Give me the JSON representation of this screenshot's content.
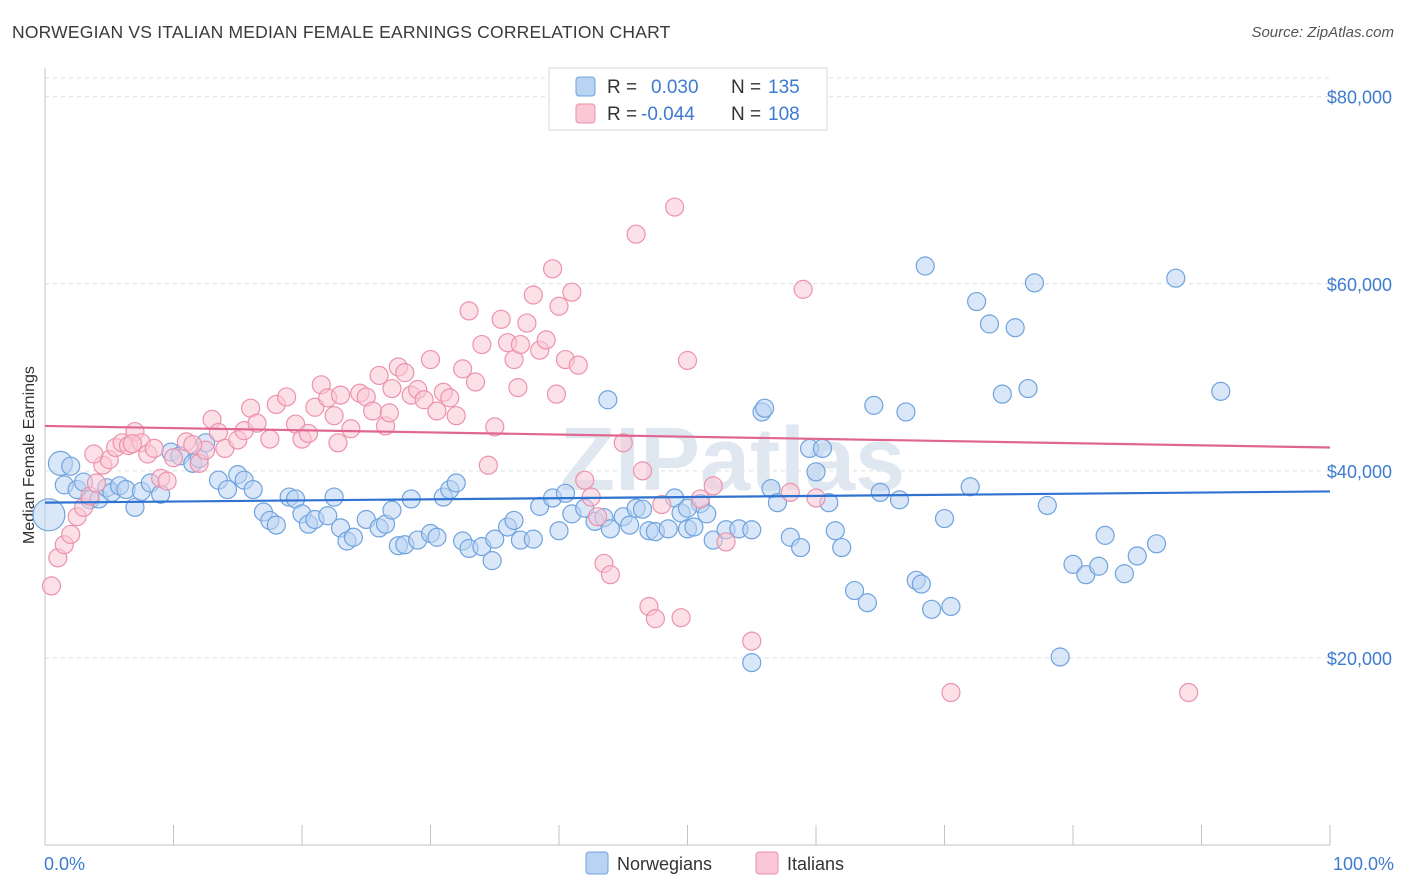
{
  "title": "NORWEGIAN VS ITALIAN MEDIAN FEMALE EARNINGS CORRELATION CHART",
  "source": "Source: ZipAtlas.com",
  "watermark": "ZIPatlas",
  "colors": {
    "norwegians_fill": "#b9d3f2",
    "norwegians_stroke": "#6fa3de",
    "norwegians_line": "#2f72cf",
    "italians_fill": "#f9c7d5",
    "italians_stroke": "#ec92ad",
    "italians_line": "#e06690",
    "axis_text": "#3d7bd0",
    "grid": "#d9dde3"
  },
  "legend": {
    "rows": [
      {
        "r_label": "R =",
        "r_value": "0.030",
        "n_label": "N =",
        "n_value": "135"
      },
      {
        "r_label": "R =",
        "r_value": "-0.044",
        "n_label": "N =",
        "n_value": "108"
      }
    ]
  },
  "bottom_legend": [
    "Norwegians",
    "Italians"
  ],
  "chart_data": {
    "type": "scatter",
    "title": "NORWEGIAN VS ITALIAN MEDIAN FEMALE EARNINGS CORRELATION CHART",
    "xlabel": "",
    "ylabel": "Median Female Earnings",
    "xlim": [
      0,
      100
    ],
    "ylim": [
      0,
      82000
    ],
    "x_tick_labels": [
      "0.0%",
      "100.0%"
    ],
    "y_ticks": [
      20000,
      40000,
      60000,
      80000
    ],
    "y_tick_labels": [
      "$20,000",
      "$40,000",
      "$60,000",
      "$80,000"
    ],
    "grid": true,
    "legend_position": "top-center",
    "series": [
      {
        "name": "Norwegians",
        "r": 0.03,
        "n": 135,
        "trend": [
          [
            0,
            36600
          ],
          [
            100,
            37800
          ]
        ],
        "points": [
          [
            0.3,
            35300
          ],
          [
            1.2,
            40800
          ],
          [
            2.0,
            40500
          ],
          [
            1.5,
            38500
          ],
          [
            2.5,
            38000
          ],
          [
            3.0,
            38800
          ],
          [
            3.5,
            36900
          ],
          [
            4.2,
            37000
          ],
          [
            4.8,
            38200
          ],
          [
            5.2,
            37700
          ],
          [
            5.8,
            38400
          ],
          [
            6.3,
            38000
          ],
          [
            7.0,
            36100
          ],
          [
            7.5,
            37800
          ],
          [
            8.2,
            38700
          ],
          [
            9.0,
            37500
          ],
          [
            9.8,
            42000
          ],
          [
            10.5,
            41600
          ],
          [
            11.5,
            40800
          ],
          [
            12.0,
            41300
          ],
          [
            12.5,
            43000
          ],
          [
            13.5,
            39000
          ],
          [
            14.2,
            38000
          ],
          [
            15.0,
            39600
          ],
          [
            15.5,
            39000
          ],
          [
            16.2,
            38000
          ],
          [
            17.0,
            35600
          ],
          [
            17.5,
            34700
          ],
          [
            18.0,
            34200
          ],
          [
            19.0,
            37200
          ],
          [
            19.5,
            37000
          ],
          [
            20.0,
            35400
          ],
          [
            20.5,
            34300
          ],
          [
            21.0,
            34800
          ],
          [
            22.0,
            35200
          ],
          [
            22.5,
            37200
          ],
          [
            23.0,
            33900
          ],
          [
            23.5,
            32500
          ],
          [
            24.0,
            32900
          ],
          [
            25.0,
            34800
          ],
          [
            26.0,
            33900
          ],
          [
            26.5,
            34300
          ],
          [
            27.0,
            35800
          ],
          [
            27.5,
            32000
          ],
          [
            28.0,
            32100
          ],
          [
            28.5,
            37000
          ],
          [
            29.0,
            32600
          ],
          [
            30.0,
            33300
          ],
          [
            30.5,
            32900
          ],
          [
            31.0,
            37200
          ],
          [
            31.5,
            38000
          ],
          [
            32.0,
            38700
          ],
          [
            32.5,
            32500
          ],
          [
            33.0,
            31700
          ],
          [
            34.0,
            31900
          ],
          [
            34.8,
            30400
          ],
          [
            35.0,
            32700
          ],
          [
            36.0,
            34000
          ],
          [
            36.5,
            34700
          ],
          [
            37.0,
            32600
          ],
          [
            38.0,
            32700
          ],
          [
            38.5,
            36200
          ],
          [
            39.5,
            37100
          ],
          [
            40.0,
            33600
          ],
          [
            40.5,
            37600
          ],
          [
            41.0,
            35400
          ],
          [
            42.0,
            36000
          ],
          [
            42.8,
            34600
          ],
          [
            43.5,
            35000
          ],
          [
            44.0,
            33800
          ],
          [
            45.0,
            35100
          ],
          [
            45.5,
            34200
          ],
          [
            46.0,
            36000
          ],
          [
            46.5,
            35900
          ],
          [
            47.0,
            33600
          ],
          [
            47.5,
            33500
          ],
          [
            48.5,
            33800
          ],
          [
            49.0,
            37100
          ],
          [
            49.5,
            35500
          ],
          [
            50.0,
            33800
          ],
          [
            50.5,
            34000
          ],
          [
            51.0,
            36500
          ],
          [
            51.5,
            35400
          ],
          [
            52.0,
            32600
          ],
          [
            53.0,
            33700
          ],
          [
            54.0,
            33800
          ],
          [
            55.0,
            33700
          ],
          [
            55.8,
            46300
          ],
          [
            56.5,
            38100
          ],
          [
            57.0,
            36600
          ],
          [
            58.0,
            32900
          ],
          [
            58.8,
            31800
          ],
          [
            59.5,
            42400
          ],
          [
            60.0,
            39900
          ],
          [
            61.0,
            36600
          ],
          [
            61.5,
            33600
          ],
          [
            62.0,
            31800
          ],
          [
            63.0,
            27200
          ],
          [
            64.0,
            25900
          ],
          [
            65.0,
            37700
          ],
          [
            66.5,
            36900
          ],
          [
            67.0,
            46300
          ],
          [
            67.8,
            28300
          ],
          [
            68.2,
            27900
          ],
          [
            69.0,
            25200
          ],
          [
            70.0,
            34900
          ],
          [
            70.5,
            25500
          ],
          [
            72.0,
            38300
          ],
          [
            73.5,
            55700
          ],
          [
            74.5,
            48200
          ],
          [
            75.5,
            55300
          ],
          [
            76.5,
            48800
          ],
          [
            78.0,
            36300
          ],
          [
            79.0,
            20100
          ],
          [
            80.0,
            30000
          ],
          [
            81.0,
            28900
          ],
          [
            82.0,
            29800
          ],
          [
            82.5,
            33100
          ],
          [
            84.0,
            29000
          ],
          [
            85.0,
            30900
          ],
          [
            86.5,
            32200
          ],
          [
            72.5,
            58100
          ],
          [
            68.5,
            61900
          ],
          [
            77.0,
            60100
          ],
          [
            88.0,
            60600
          ],
          [
            91.5,
            48500
          ],
          [
            60.5,
            42400
          ],
          [
            56.0,
            46700
          ],
          [
            43.8,
            47600
          ],
          [
            55.0,
            19500
          ],
          [
            64.5,
            47000
          ],
          [
            50.0,
            36000
          ]
        ]
      },
      {
        "name": "Italians",
        "r": -0.044,
        "n": 108,
        "trend": [
          [
            0,
            44800
          ],
          [
            100,
            42500
          ]
        ],
        "points": [
          [
            0.5,
            27700
          ],
          [
            1.0,
            30700
          ],
          [
            1.5,
            32100
          ],
          [
            2.0,
            33200
          ],
          [
            2.5,
            35100
          ],
          [
            3.0,
            36100
          ],
          [
            3.5,
            37300
          ],
          [
            4.0,
            38700
          ],
          [
            4.5,
            40600
          ],
          [
            5.0,
            41200
          ],
          [
            5.5,
            42500
          ],
          [
            6.0,
            43000
          ],
          [
            6.5,
            42700
          ],
          [
            7.0,
            44200
          ],
          [
            7.5,
            43000
          ],
          [
            8.0,
            41800
          ],
          [
            8.5,
            42400
          ],
          [
            9.0,
            39200
          ],
          [
            9.5,
            38900
          ],
          [
            10.0,
            41400
          ],
          [
            11.0,
            43100
          ],
          [
            12.0,
            40800
          ],
          [
            12.5,
            42200
          ],
          [
            13.0,
            45500
          ],
          [
            13.5,
            44100
          ],
          [
            14.0,
            42400
          ],
          [
            15.0,
            43300
          ],
          [
            15.5,
            44300
          ],
          [
            16.0,
            46700
          ],
          [
            16.5,
            45100
          ],
          [
            17.5,
            43400
          ],
          [
            18.0,
            47100
          ],
          [
            18.8,
            47900
          ],
          [
            19.5,
            45000
          ],
          [
            20.0,
            43400
          ],
          [
            20.5,
            44000
          ],
          [
            21.0,
            46800
          ],
          [
            21.5,
            49200
          ],
          [
            22.0,
            47800
          ],
          [
            22.5,
            45900
          ],
          [
            23.0,
            48100
          ],
          [
            23.8,
            44500
          ],
          [
            24.5,
            48300
          ],
          [
            25.0,
            47900
          ],
          [
            25.5,
            46400
          ],
          [
            26.0,
            50200
          ],
          [
            26.5,
            44800
          ],
          [
            27.0,
            48800
          ],
          [
            27.5,
            51100
          ],
          [
            28.0,
            50500
          ],
          [
            28.5,
            48100
          ],
          [
            29.0,
            48700
          ],
          [
            29.5,
            47600
          ],
          [
            30.0,
            51900
          ],
          [
            30.5,
            46400
          ],
          [
            31.0,
            48400
          ],
          [
            31.5,
            47800
          ],
          [
            32.0,
            45900
          ],
          [
            32.5,
            50900
          ],
          [
            33.0,
            57100
          ],
          [
            33.5,
            49500
          ],
          [
            34.0,
            53500
          ],
          [
            34.5,
            40600
          ],
          [
            35.0,
            44700
          ],
          [
            35.5,
            56200
          ],
          [
            36.0,
            53700
          ],
          [
            36.5,
            51900
          ],
          [
            37.0,
            53500
          ],
          [
            37.5,
            55800
          ],
          [
            38.0,
            58800
          ],
          [
            38.5,
            52900
          ],
          [
            39.0,
            54000
          ],
          [
            39.5,
            61600
          ],
          [
            40.0,
            57600
          ],
          [
            40.5,
            51900
          ],
          [
            41.0,
            59100
          ],
          [
            41.5,
            51300
          ],
          [
            42.0,
            39000
          ],
          [
            42.5,
            37200
          ],
          [
            43.0,
            35100
          ],
          [
            43.5,
            30100
          ],
          [
            44.0,
            28900
          ],
          [
            45.0,
            43000
          ],
          [
            46.0,
            65300
          ],
          [
            46.5,
            40000
          ],
          [
            47.0,
            25500
          ],
          [
            47.5,
            24200
          ],
          [
            48.0,
            36400
          ],
          [
            49.0,
            68200
          ],
          [
            49.5,
            24300
          ],
          [
            50.0,
            51800
          ],
          [
            51.0,
            37000
          ],
          [
            52.0,
            38400
          ],
          [
            53.0,
            32400
          ],
          [
            55.0,
            21800
          ],
          [
            58.0,
            37700
          ],
          [
            59.0,
            59400
          ],
          [
            60.0,
            37100
          ],
          [
            70.5,
            16300
          ],
          [
            89.0,
            16300
          ],
          [
            3.8,
            41800
          ],
          [
            11.5,
            42800
          ],
          [
            22.8,
            43000
          ],
          [
            26.8,
            46200
          ],
          [
            36.8,
            48900
          ],
          [
            39.8,
            48200
          ],
          [
            6.8,
            42900
          ]
        ]
      }
    ]
  }
}
